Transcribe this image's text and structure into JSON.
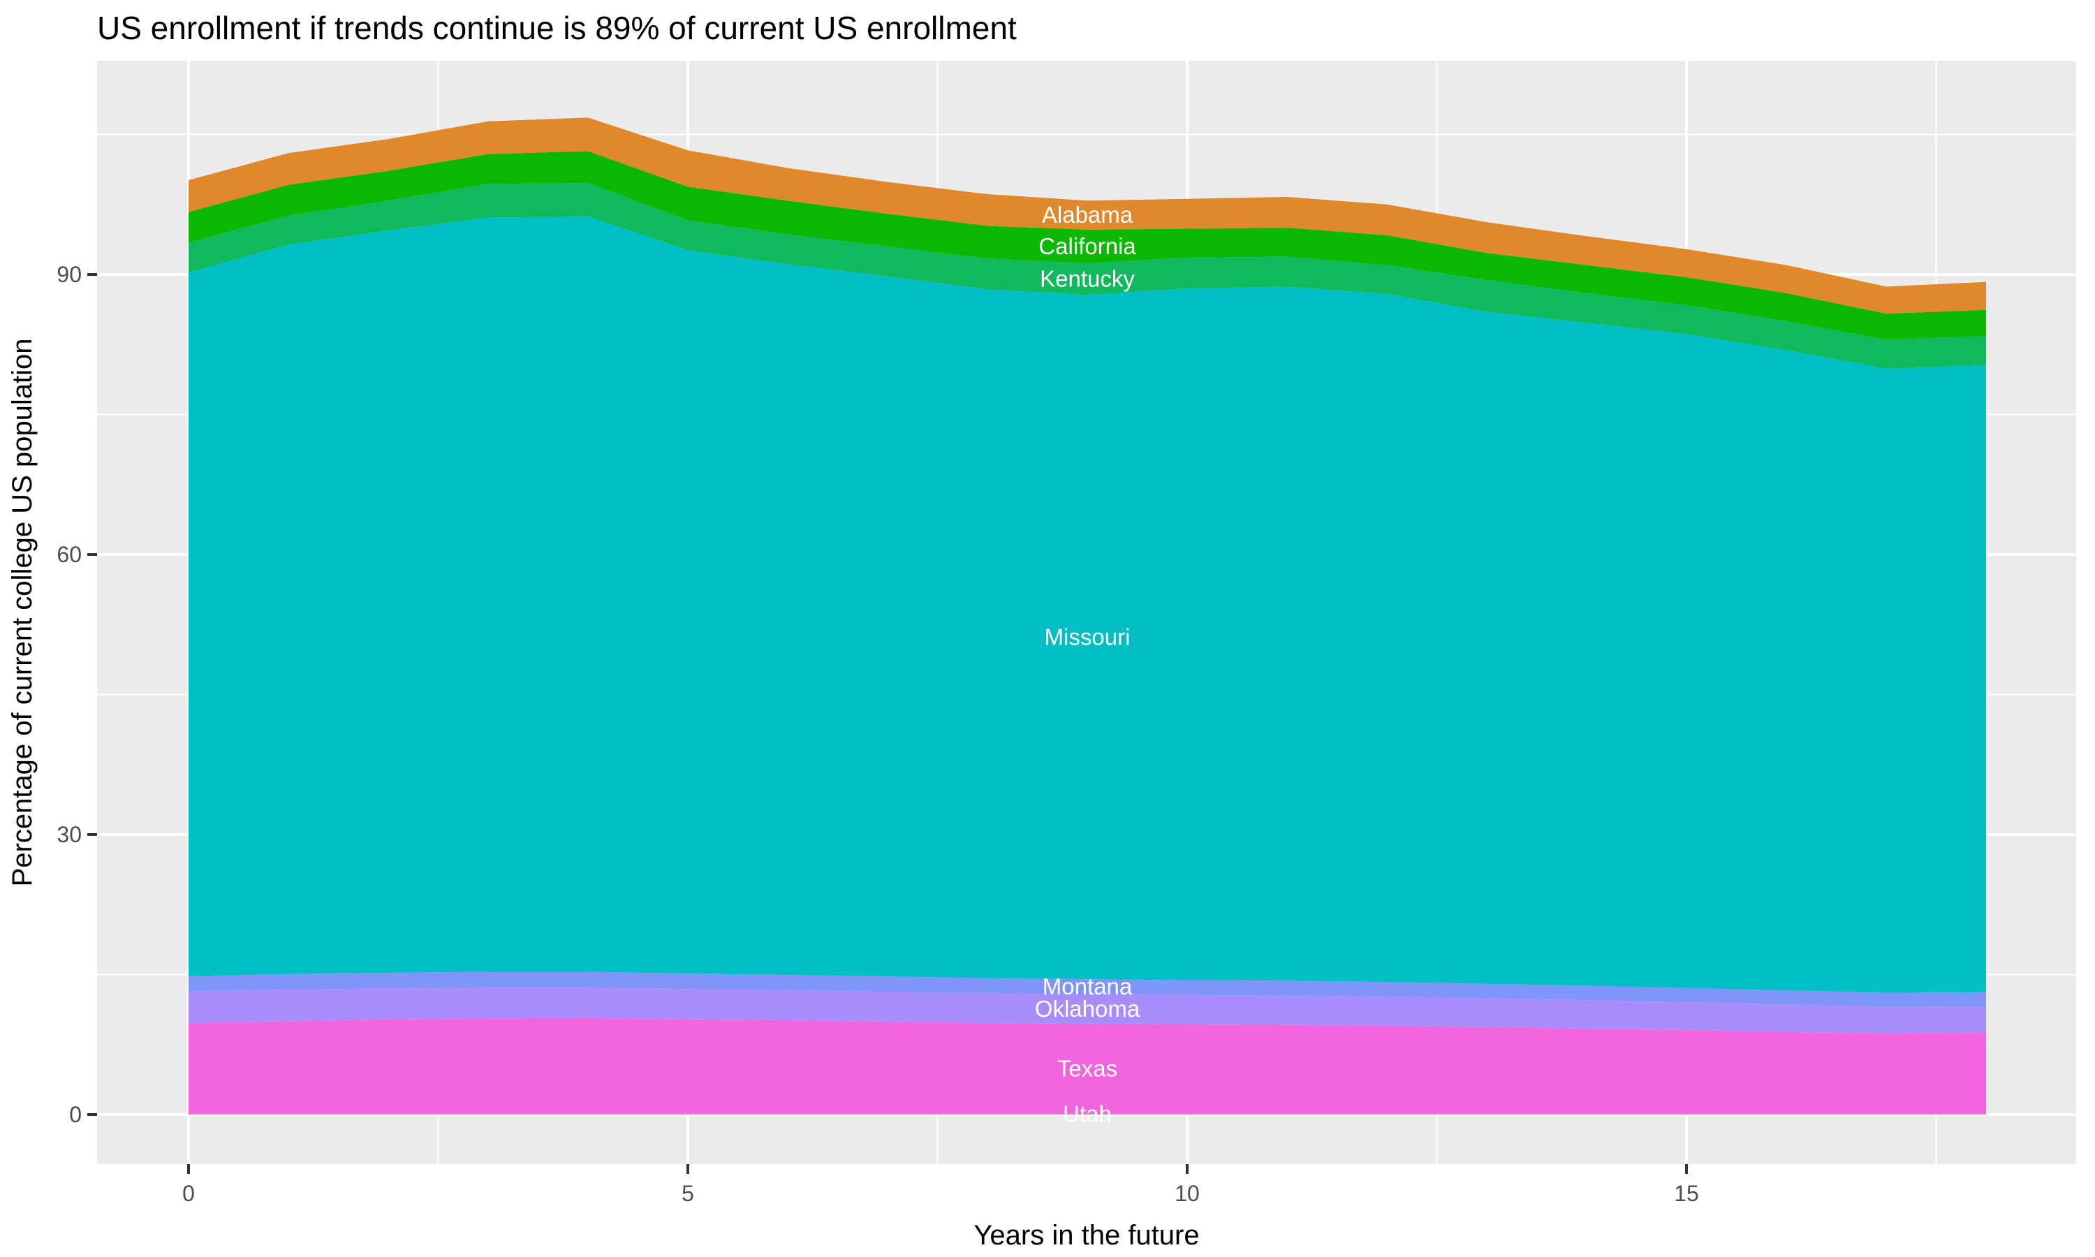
{
  "chart_data": {
    "type": "area",
    "subtype": "stacked-area",
    "title": "US enrollment if trends continue is 89% of current US enrollment",
    "xlabel": "Years in the future",
    "ylabel": "Percentage of current college US population",
    "x": [
      0,
      1,
      2,
      3,
      4,
      5,
      6,
      7,
      8,
      9,
      10,
      11,
      12,
      13,
      14,
      15,
      16,
      17,
      18
    ],
    "x_ticks": [
      0,
      5,
      10,
      15
    ],
    "x_minor_ticks": [
      2.5,
      7.5,
      12.5,
      17.5
    ],
    "y_ticks": [
      0,
      30,
      60,
      90
    ],
    "y_minor_ticks": [
      15,
      45,
      75,
      105
    ],
    "xlim": [
      -0.9,
      18.9
    ],
    "ylim": [
      -5.4,
      112.9
    ],
    "grid": true,
    "legend_position": "none",
    "label_x": 9,
    "stack_order": "bottom-to-top",
    "total_at_year_0": 100.1,
    "total_at_peak_year_4": 106.8,
    "total_at_year_18": 89.2,
    "series": [
      {
        "name": "Utah",
        "color": "#FF61CC",
        "values": [
          0.1,
          0.1,
          0.1,
          0.1,
          0.1,
          0.1,
          0.1,
          0.1,
          0.1,
          0.1,
          0.1,
          0.1,
          0.1,
          0.1,
          0.1,
          0.1,
          0.1,
          0.1,
          0.1
        ]
      },
      {
        "name": "Texas",
        "color": "#F464DF",
        "values": [
          9.7,
          9.9,
          10.1,
          10.2,
          10.25,
          10.1,
          10.0,
          9.85,
          9.7,
          9.6,
          9.55,
          9.5,
          9.4,
          9.25,
          9.1,
          8.95,
          8.75,
          8.55,
          8.65
        ]
      },
      {
        "name": "Oklahoma",
        "color": "#A78CFA",
        "values": [
          3.4,
          3.4,
          3.3,
          3.3,
          3.25,
          3.25,
          3.2,
          3.2,
          3.2,
          3.2,
          3.15,
          3.15,
          3.15,
          3.1,
          3.05,
          3.0,
          2.95,
          2.9,
          2.85
        ]
      },
      {
        "name": "Montana",
        "color": "#8095F9",
        "values": [
          1.6,
          1.65,
          1.7,
          1.7,
          1.7,
          1.65,
          1.65,
          1.65,
          1.6,
          1.6,
          1.6,
          1.6,
          1.55,
          1.55,
          1.55,
          1.5,
          1.5,
          1.5,
          1.5
        ]
      },
      {
        "name": "Missouri",
        "color": "#00BFC4",
        "values": [
          75.4,
          78.15,
          79.5,
          80.8,
          80.9,
          77.5,
          76.15,
          75.0,
          73.8,
          73.3,
          74.1,
          74.35,
          73.7,
          72.0,
          71.0,
          70.05,
          68.6,
          66.85,
          67.2
        ]
      },
      {
        "name": "Kentucky",
        "color": "#0FB95C",
        "values": [
          3.2,
          3.1,
          3.2,
          3.6,
          3.6,
          3.2,
          3.2,
          3.2,
          3.3,
          3.4,
          3.3,
          3.2,
          3.1,
          3.4,
          3.2,
          3.1,
          3.1,
          3.1,
          3.1
        ]
      },
      {
        "name": "California",
        "color": "#0CB702",
        "values": [
          3.3,
          3.3,
          3.2,
          3.2,
          3.4,
          3.6,
          3.6,
          3.5,
          3.5,
          3.6,
          3.1,
          3.1,
          3.2,
          2.9,
          3.0,
          3.0,
          3.0,
          2.8,
          2.8
        ]
      },
      {
        "name": "Alabama",
        "color": "#E0882C",
        "values": [
          3.4,
          3.4,
          3.4,
          3.5,
          3.6,
          3.9,
          3.5,
          3.4,
          3.4,
          3.1,
          3.2,
          3.3,
          3.3,
          3.3,
          3.1,
          3.0,
          3.0,
          2.9,
          3.0
        ]
      }
    ]
  },
  "colors": {
    "panel_background": "#EBEBEB",
    "gridline": "#FFFFFF",
    "tick_mark": "#333333",
    "tick_label": "#4D4D4D",
    "title_text": "#000000",
    "series_label_text": "#FFFFFF"
  }
}
